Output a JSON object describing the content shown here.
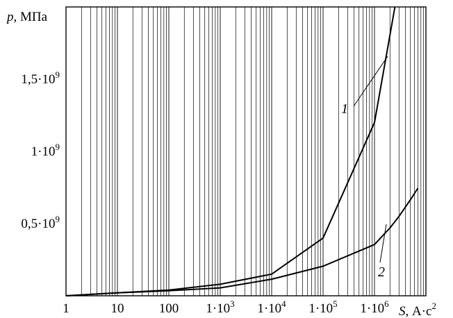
{
  "chart_data": {
    "type": "line",
    "x_scale": "log",
    "xlim": [
      1,
      10000000
    ],
    "ylim": [
      0,
      2000000000
    ],
    "grid": "vertical-log",
    "ylabel": {
      "var": "p",
      "unit": ", МПа"
    },
    "xlabel": {
      "var": "S",
      "unit": ", А·с",
      "exp": "2"
    },
    "x_ticks": [
      {
        "value": 1,
        "base": "1"
      },
      {
        "value": 10,
        "base": "10"
      },
      {
        "value": 100,
        "base": "100"
      },
      {
        "value": 1000,
        "base": "1·10",
        "exp": "3"
      },
      {
        "value": 10000,
        "base": "1·10",
        "exp": "4"
      },
      {
        "value": 100000,
        "base": "1·10",
        "exp": "5"
      },
      {
        "value": 1000000,
        "base": "1·10",
        "exp": "6"
      }
    ],
    "y_ticks": [
      {
        "value": 500000000,
        "base": "0,5·10",
        "exp": "9"
      },
      {
        "value": 1000000000,
        "base": "1·10",
        "exp": "9"
      },
      {
        "value": 1500000000,
        "base": "1,5·10",
        "exp": "9"
      }
    ],
    "series": [
      {
        "name": "1",
        "x": [
          1,
          10,
          100,
          1000,
          10000,
          100000,
          1000000,
          2500000
        ],
        "y": [
          0,
          20000000,
          40000000,
          80000000,
          150000000,
          400000000,
          1200000000,
          2000000000
        ]
      },
      {
        "name": "2",
        "x": [
          1,
          10,
          100,
          1000,
          10000,
          100000,
          1000000,
          2000000,
          3000000,
          5000000,
          7000000
        ],
        "y": [
          0,
          20000000,
          35000000,
          55000000,
          115000000,
          205000000,
          355000000,
          470000000,
          550000000,
          665000000,
          745000000
        ]
      }
    ]
  }
}
